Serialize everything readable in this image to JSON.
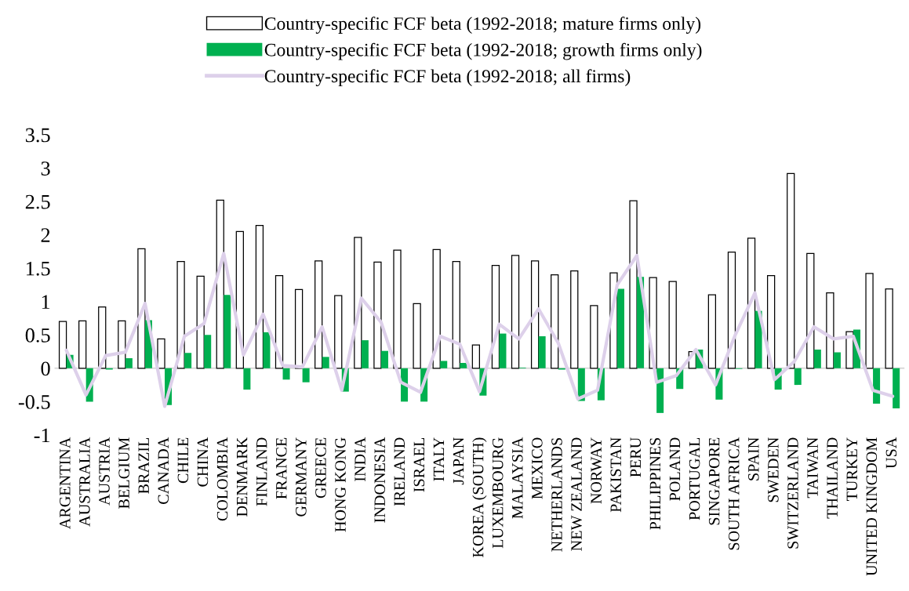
{
  "chart_data": {
    "type": "bar",
    "categories": [
      "ARGENTINA",
      "AUSTRALIA",
      "AUSTRIA",
      "BELGIUM",
      "BRAZIL",
      "CANADA",
      "CHILE",
      "CHINA",
      "COLOMBIA",
      "DENMARK",
      "FINLAND",
      "FRANCE",
      "GERMANY",
      "GREECE",
      "HONG KONG",
      "INDIA",
      "INDONESIA",
      "IRELAND",
      "ISRAEL",
      "ITALY",
      "JAPAN",
      "KOREA (SOUTH)",
      "LUXEMBOURG",
      "MALAYSIA",
      "MEXICO",
      "NETHERLANDS",
      "NEW ZEALAND",
      "NORWAY",
      "PAKISTAN",
      "PERU",
      "PHILIPPINES",
      "POLAND",
      "PORTUGAL",
      "SINGAPORE",
      "SOUTH AFRICA",
      "SPAIN",
      "SWEDEN",
      "SWITZERLAND",
      "TAIWAN",
      "THAILAND",
      "TURKEY",
      "UNITED KINGDOM",
      "USA"
    ],
    "series": [
      {
        "name": "Country-specific FCF beta (1992-2018; mature firms only)",
        "color": "#ffffff",
        "values": [
          0.7,
          0.71,
          0.92,
          0.71,
          1.79,
          0.44,
          1.6,
          1.38,
          2.52,
          2.05,
          2.14,
          1.39,
          1.18,
          1.61,
          1.09,
          1.96,
          1.59,
          1.77,
          0.97,
          1.78,
          1.6,
          0.35,
          1.54,
          1.69,
          1.61,
          1.4,
          1.46,
          0.94,
          1.43,
          2.51,
          1.36,
          1.3,
          0.25,
          1.1,
          1.74,
          1.95,
          1.39,
          2.92,
          1.72,
          1.13,
          0.55,
          1.42,
          1.19
        ]
      },
      {
        "name": "Country-specific FCF beta (1992-2018; growth firms only)",
        "color": "#00b050",
        "values": [
          0.2,
          -0.5,
          -0.02,
          0.15,
          0.72,
          -0.55,
          0.23,
          0.5,
          1.1,
          -0.32,
          0.54,
          -0.17,
          -0.21,
          0.17,
          -0.35,
          0.42,
          0.26,
          -0.5,
          -0.5,
          0.11,
          0.08,
          -0.41,
          0.52,
          0.01,
          0.48,
          -0.02,
          -0.49,
          -0.48,
          1.19,
          1.37,
          -0.67,
          -0.31,
          0.28,
          -0.47,
          -0.01,
          0.86,
          -0.32,
          -0.25,
          0.28,
          0.24,
          0.58,
          -0.53,
          -0.6
        ]
      },
      {
        "name": "Country-specific FCF beta (1992-2018; all firms)",
        "type": "line",
        "color": "#ddd0ea",
        "values": [
          0.27,
          -0.4,
          0.19,
          0.24,
          0.97,
          -0.57,
          0.48,
          0.67,
          1.72,
          0.2,
          0.81,
          0.04,
          0.02,
          0.62,
          -0.33,
          1.05,
          0.69,
          -0.21,
          -0.36,
          0.48,
          0.36,
          -0.35,
          0.66,
          0.44,
          0.89,
          0.38,
          -0.46,
          -0.33,
          1.25,
          1.69,
          -0.21,
          -0.11,
          0.28,
          -0.25,
          0.5,
          1.13,
          -0.17,
          0.1,
          0.62,
          0.44,
          0.48,
          -0.33,
          -0.42
        ]
      }
    ],
    "ylim": [
      -1,
      3.5
    ],
    "yticks": [
      {
        "value": -1,
        "label": "-1"
      },
      {
        "value": -0.5,
        "label": "-0.5"
      },
      0,
      0.5,
      1,
      1.5,
      2,
      2.5,
      3,
      3.5
    ],
    "ref_lines": [
      {
        "axis": "y",
        "value": 0,
        "color": "#d9d9d9"
      }
    ],
    "grid": false,
    "legend": "top"
  }
}
